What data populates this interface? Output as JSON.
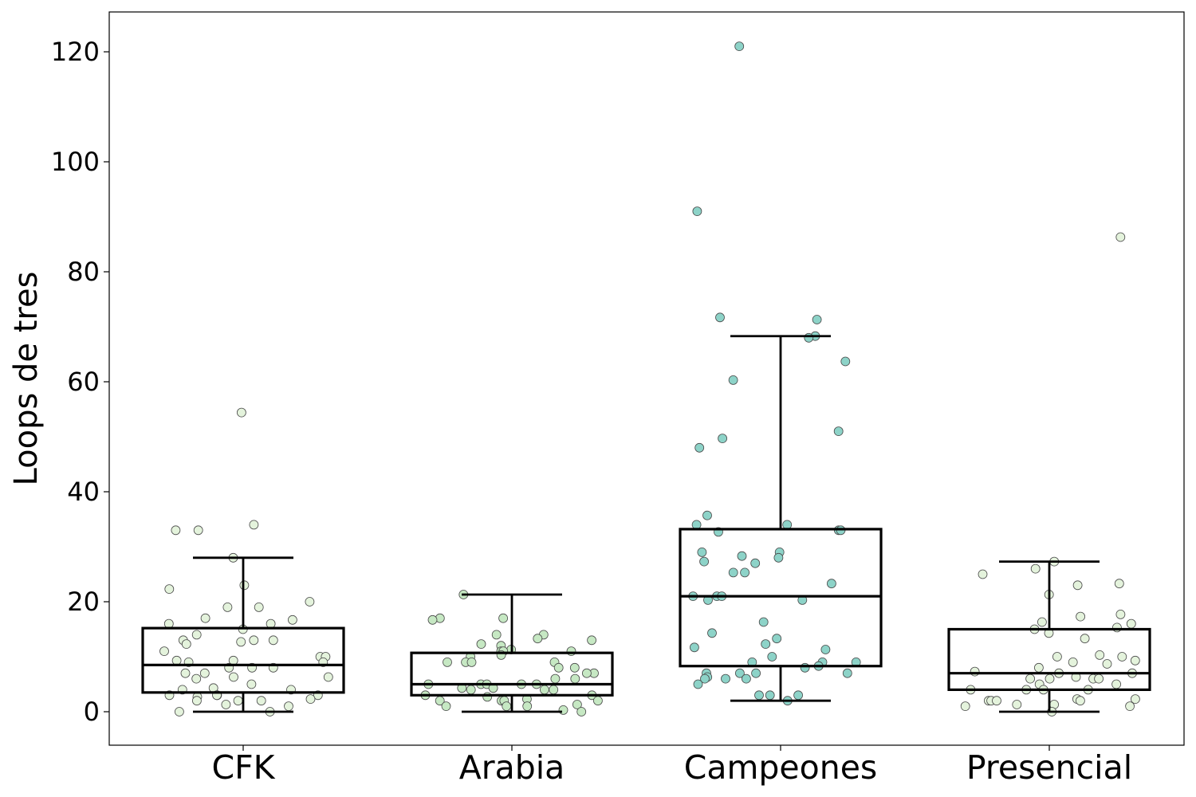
{
  "chart_data": {
    "type": "box",
    "title": "",
    "xlabel": "",
    "ylabel": "Loops de tres",
    "ylim": [
      -6,
      127
    ],
    "yticks": [
      0,
      20,
      40,
      60,
      80,
      100,
      120
    ],
    "grid": false,
    "categories": [
      "CFK",
      "Arabia",
      "Campeones",
      "Presencial"
    ],
    "box_stats": [
      {
        "category": "CFK",
        "whisker_low": 0,
        "q1": 3.5,
        "median": 8.5,
        "q3": 15.2,
        "whisker_high": 28
      },
      {
        "category": "Arabia",
        "whisker_low": 0,
        "q1": 3,
        "median": 5,
        "q3": 10.7,
        "whisker_high": 21.3
      },
      {
        "category": "Campeones",
        "whisker_low": 2,
        "q1": 8.3,
        "median": 21,
        "q3": 33.2,
        "whisker_high": 68.3
      },
      {
        "category": "Presencial",
        "whisker_low": 0,
        "q1": 4,
        "median": 7,
        "q3": 15,
        "whisker_high": 27.3
      }
    ],
    "points": [
      {
        "category": "CFK",
        "color": "#e4f3dc",
        "values": [
          54.4,
          34,
          33,
          33,
          28,
          23,
          22.3,
          20,
          19,
          19,
          17,
          16.7,
          16,
          16,
          15,
          14,
          13,
          13,
          13,
          12.7,
          12.3,
          11,
          10,
          10,
          9.3,
          9.3,
          9,
          9,
          8,
          8,
          8,
          7,
          7,
          6.3,
          6.3,
          6,
          5,
          4.3,
          4,
          4,
          3,
          3,
          3,
          3,
          2.7,
          2.3,
          2,
          2,
          2,
          1.3,
          1,
          0,
          0
        ]
      },
      {
        "category": "Arabia",
        "color": "#c6e8c3",
        "values": [
          21.3,
          17,
          17,
          16.7,
          14,
          14,
          13.3,
          13,
          12.3,
          12,
          11.3,
          11,
          11,
          11,
          10.3,
          10,
          9,
          9,
          9,
          9,
          8,
          8,
          7,
          7,
          6,
          6,
          5,
          5,
          5,
          5,
          5,
          4.3,
          4.3,
          4,
          4,
          4,
          3,
          3,
          2.7,
          2.3,
          2,
          2,
          2,
          2,
          1.3,
          1,
          1,
          1,
          0.3,
          0
        ]
      },
      {
        "category": "Campeones",
        "color": "#8dd3c8",
        "values": [
          121,
          91,
          71.7,
          71.3,
          68.3,
          68,
          63.7,
          60.3,
          51,
          49.7,
          48,
          35.7,
          34,
          34,
          33,
          33,
          32.7,
          29,
          29,
          28.3,
          28,
          27.3,
          27,
          25.3,
          25.3,
          23.3,
          21,
          21,
          21,
          20.3,
          20.3,
          16.3,
          14.3,
          13.3,
          12.3,
          11.7,
          11.3,
          10,
          9,
          9,
          9,
          8.3,
          8,
          7,
          7,
          7,
          7,
          6.3,
          6,
          6,
          6,
          5,
          3,
          3,
          3,
          2
        ]
      },
      {
        "category": "Presencial",
        "color": "#e4f3dc",
        "values": [
          86.3,
          27.3,
          26,
          25,
          23.3,
          23,
          21.3,
          17.7,
          17.3,
          16.3,
          16,
          15.3,
          15,
          14.3,
          13.3,
          10.3,
          10,
          10,
          9.3,
          9,
          8.7,
          8,
          7.3,
          7,
          7,
          6.3,
          6,
          6,
          6,
          6,
          5,
          5,
          4,
          4,
          4,
          4,
          2.3,
          2.3,
          2,
          2,
          2,
          2,
          1.3,
          1.3,
          1,
          1,
          0
        ]
      }
    ]
  }
}
